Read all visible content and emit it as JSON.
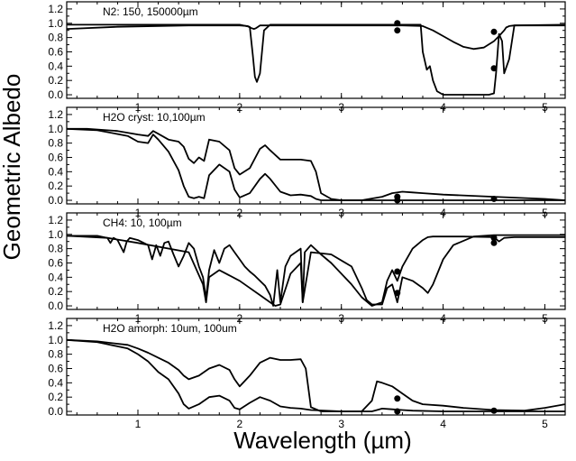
{
  "chart_data": [
    {
      "type": "line",
      "label": "N2: 150, 150000µm",
      "xlim": [
        0.3,
        5.2
      ],
      "ylim": [
        -0.05,
        1.3
      ],
      "x_ticks": [
        1,
        2,
        3,
        4,
        5
      ],
      "y_ticks": [
        0.0,
        0.2,
        0.4,
        0.6,
        0.8,
        1.0,
        1.2
      ],
      "series": [
        {
          "x": [
            0.3,
            0.8,
            1.5,
            2.0,
            2.08,
            2.1,
            2.12,
            2.14,
            2.16,
            2.18,
            2.2,
            2.3,
            2.8,
            3.3,
            3.6,
            3.8,
            3.9,
            4.0,
            4.1,
            4.2,
            4.3,
            4.4,
            4.5,
            4.55,
            4.6,
            4.62,
            4.65,
            4.7,
            5.2
          ],
          "y": [
            0.92,
            0.95,
            0.97,
            0.97,
            0.96,
            0.94,
            0.93,
            0.92,
            0.93,
            0.95,
            0.97,
            0.97,
            0.97,
            0.97,
            0.97,
            0.96,
            0.9,
            0.82,
            0.74,
            0.67,
            0.64,
            0.66,
            0.75,
            0.82,
            0.9,
            0.94,
            0.96,
            0.97,
            0.97
          ]
        },
        {
          "x": [
            0.3,
            1.5,
            2.0,
            2.1,
            2.13,
            2.15,
            2.17,
            2.2,
            2.24,
            2.3,
            3.0,
            3.78,
            3.8,
            3.84,
            3.87,
            3.9,
            3.94,
            4.0,
            4.2,
            4.45,
            4.5,
            4.52,
            4.55,
            4.58,
            4.6,
            4.65,
            4.7,
            5.2
          ],
          "y": [
            0.98,
            0.98,
            0.98,
            0.95,
            0.55,
            0.25,
            0.18,
            0.3,
            0.9,
            0.98,
            0.98,
            0.98,
            0.6,
            0.35,
            0.4,
            0.2,
            0.05,
            0.0,
            0.0,
            0.0,
            0.02,
            0.3,
            0.85,
            0.75,
            0.3,
            0.5,
            0.97,
            0.98
          ]
        }
      ],
      "markers": [
        {
          "x": 3.55,
          "y": 1.0
        },
        {
          "x": 3.55,
          "y": 0.9
        },
        {
          "x": 4.5,
          "y": 0.88
        },
        {
          "x": 4.5,
          "y": 0.37
        }
      ]
    },
    {
      "type": "line",
      "label": "H2O cryst: 10,100µm",
      "xlim": [
        0.3,
        5.2
      ],
      "ylim": [
        -0.05,
        1.3
      ],
      "x_ticks": [
        1,
        2,
        3,
        4,
        5
      ],
      "y_ticks": [
        0.0,
        0.2,
        0.4,
        0.6,
        0.8,
        1.0,
        1.2
      ],
      "series": [
        {
          "x": [
            0.3,
            0.5,
            0.8,
            1.0,
            1.1,
            1.15,
            1.2,
            1.3,
            1.4,
            1.45,
            1.5,
            1.55,
            1.6,
            1.65,
            1.7,
            1.8,
            1.9,
            1.95,
            2.0,
            2.1,
            2.2,
            2.25,
            2.3,
            2.4,
            2.5,
            2.6,
            2.7,
            2.75,
            2.8,
            2.9,
            3.0,
            3.2,
            3.4,
            3.5,
            3.6,
            3.7,
            3.8,
            4.0,
            4.5,
            5.0,
            5.2
          ],
          "y": [
            1.0,
            1.0,
            0.97,
            0.92,
            0.9,
            0.97,
            0.93,
            0.85,
            0.82,
            0.75,
            0.58,
            0.52,
            0.6,
            0.55,
            0.85,
            0.82,
            0.7,
            0.45,
            0.36,
            0.45,
            0.72,
            0.77,
            0.7,
            0.57,
            0.57,
            0.57,
            0.55,
            0.4,
            0.1,
            0.02,
            0.0,
            0.0,
            0.05,
            0.1,
            0.12,
            0.11,
            0.1,
            0.08,
            0.05,
            0.02,
            0.0
          ]
        },
        {
          "x": [
            0.3,
            0.6,
            0.9,
            1.0,
            1.1,
            1.15,
            1.2,
            1.3,
            1.4,
            1.45,
            1.5,
            1.55,
            1.6,
            1.65,
            1.7,
            1.8,
            1.9,
            1.95,
            2.0,
            2.1,
            2.2,
            2.25,
            2.3,
            2.4,
            2.5,
            2.6,
            2.7,
            2.75,
            2.8,
            3.0,
            3.5,
            4.0,
            5.2
          ],
          "y": [
            1.0,
            0.98,
            0.9,
            0.82,
            0.8,
            0.92,
            0.85,
            0.68,
            0.42,
            0.2,
            0.05,
            0.03,
            0.05,
            0.03,
            0.35,
            0.5,
            0.4,
            0.15,
            0.04,
            0.1,
            0.3,
            0.37,
            0.3,
            0.12,
            0.07,
            0.08,
            0.06,
            0.02,
            0.0,
            0.0,
            0.0,
            0.0,
            0.0
          ]
        }
      ],
      "markers": [
        {
          "x": 3.55,
          "y": 0.05
        },
        {
          "x": 3.55,
          "y": 0.0
        },
        {
          "x": 4.5,
          "y": 0.02
        }
      ]
    },
    {
      "type": "line",
      "label": "CH4: 10, 100µm",
      "xlim": [
        0.3,
        5.2
      ],
      "ylim": [
        -0.05,
        1.3
      ],
      "x_ticks": [
        1,
        2,
        3,
        4,
        5
      ],
      "y_ticks": [
        0.0,
        0.2,
        0.4,
        0.6,
        0.8,
        1.0,
        1.2
      ],
      "series": [
        {
          "x": [
            0.3,
            0.6,
            0.7,
            0.73,
            0.76,
            0.8,
            0.86,
            0.89,
            0.92,
            1.0,
            1.1,
            1.14,
            1.18,
            1.22,
            1.26,
            1.3,
            1.35,
            1.4,
            1.45,
            1.5,
            1.55,
            1.6,
            1.64,
            1.67,
            1.7,
            1.75,
            1.8,
            1.85,
            1.9,
            1.95,
            2.0,
            2.05,
            2.1,
            2.15,
            2.2,
            2.25,
            2.3,
            2.33,
            2.37,
            2.4,
            2.45,
            2.5,
            2.6,
            2.62,
            2.64,
            2.7,
            2.8,
            2.9,
            3.0,
            3.1,
            3.2,
            3.3,
            3.4,
            3.45,
            3.5,
            3.55,
            3.6,
            3.7,
            3.8,
            3.85,
            3.9,
            4.0,
            4.2,
            4.5,
            4.55,
            4.6,
            4.7,
            5.0,
            5.2
          ],
          "y": [
            0.98,
            0.98,
            0.95,
            0.88,
            0.95,
            0.92,
            0.75,
            0.9,
            0.95,
            0.92,
            0.85,
            0.65,
            0.85,
            0.7,
            0.88,
            0.9,
            0.72,
            0.55,
            0.7,
            0.88,
            0.8,
            0.55,
            0.4,
            0.1,
            0.5,
            0.78,
            0.6,
            0.8,
            0.85,
            0.75,
            0.65,
            0.55,
            0.48,
            0.42,
            0.35,
            0.28,
            0.15,
            0.0,
            0.5,
            0.05,
            0.55,
            0.7,
            0.8,
            0.05,
            0.75,
            0.85,
            0.72,
            0.6,
            0.45,
            0.3,
            0.12,
            0.0,
            0.05,
            0.35,
            0.5,
            0.35,
            0.55,
            0.8,
            0.92,
            0.96,
            0.97,
            0.97,
            0.97,
            0.96,
            0.9,
            0.95,
            0.96,
            0.96,
            0.96
          ]
        },
        {
          "x": [
            0.3,
            0.7,
            1.0,
            1.5,
            1.64,
            1.67,
            1.7,
            1.8,
            2.0,
            2.1,
            2.2,
            2.3,
            2.35,
            2.4,
            2.5,
            2.6,
            2.62,
            2.7,
            2.9,
            3.1,
            3.2,
            3.25,
            3.3,
            3.4,
            3.45,
            3.5,
            3.55,
            3.6,
            3.7,
            3.8,
            3.85,
            3.9,
            4.0,
            4.1,
            4.3,
            4.5,
            4.6,
            4.7,
            5.0,
            5.2
          ],
          "y": [
            0.98,
            0.95,
            0.88,
            0.75,
            0.3,
            0.05,
            0.4,
            0.5,
            0.35,
            0.25,
            0.15,
            0.05,
            0.0,
            0.02,
            0.45,
            0.6,
            0.05,
            0.75,
            0.72,
            0.55,
            0.25,
            0.08,
            0.02,
            0.02,
            0.25,
            0.3,
            0.05,
            0.4,
            0.35,
            0.25,
            0.18,
            0.3,
            0.65,
            0.85,
            0.97,
            0.99,
            0.99,
            0.99,
            0.99,
            0.99
          ]
        }
      ],
      "markers": [
        {
          "x": 3.55,
          "y": 0.48
        },
        {
          "x": 3.55,
          "y": 0.18
        },
        {
          "x": 4.5,
          "y": 0.95
        },
        {
          "x": 4.5,
          "y": 0.88
        }
      ]
    },
    {
      "type": "line",
      "label": "H2O amorph: 10um, 100um",
      "xlim": [
        0.3,
        5.2
      ],
      "ylim": [
        -0.05,
        1.3
      ],
      "x_ticks": [
        1,
        2,
        3,
        4,
        5
      ],
      "y_ticks": [
        0.0,
        0.2,
        0.4,
        0.6,
        0.8,
        1.0,
        1.2
      ],
      "series": [
        {
          "x": [
            0.3,
            0.6,
            0.9,
            1.0,
            1.1,
            1.2,
            1.3,
            1.4,
            1.45,
            1.5,
            1.6,
            1.7,
            1.8,
            1.9,
            1.95,
            2.0,
            2.1,
            2.2,
            2.3,
            2.4,
            2.5,
            2.6,
            2.65,
            2.7,
            2.8,
            3.0,
            3.2,
            3.3,
            3.35,
            3.4,
            3.5,
            3.6,
            3.7,
            3.8,
            4.0,
            4.2,
            4.5,
            4.8,
            5.0,
            5.2
          ],
          "y": [
            1.0,
            0.98,
            0.93,
            0.88,
            0.82,
            0.75,
            0.68,
            0.58,
            0.5,
            0.45,
            0.5,
            0.6,
            0.65,
            0.58,
            0.45,
            0.35,
            0.5,
            0.68,
            0.75,
            0.72,
            0.72,
            0.73,
            0.6,
            0.06,
            0.0,
            0.0,
            0.0,
            0.15,
            0.42,
            0.4,
            0.35,
            0.25,
            0.15,
            0.1,
            0.08,
            0.05,
            0.02,
            0.01,
            0.05,
            0.1
          ]
        },
        {
          "x": [
            0.3,
            0.6,
            0.9,
            1.0,
            1.1,
            1.2,
            1.3,
            1.4,
            1.45,
            1.5,
            1.6,
            1.7,
            1.8,
            1.9,
            1.95,
            2.0,
            2.1,
            2.2,
            2.3,
            2.4,
            2.5,
            2.6,
            2.7,
            3.0,
            3.3,
            3.35,
            3.4,
            3.5,
            3.6,
            3.7,
            4.0,
            5.2
          ],
          "y": [
            1.0,
            0.97,
            0.88,
            0.8,
            0.7,
            0.55,
            0.45,
            0.25,
            0.1,
            0.04,
            0.1,
            0.2,
            0.22,
            0.15,
            0.05,
            0.03,
            0.12,
            0.2,
            0.15,
            0.07,
            0.05,
            0.04,
            0.02,
            0.0,
            0.0,
            0.02,
            0.04,
            0.03,
            0.02,
            0.01,
            0.0,
            0.0
          ]
        }
      ],
      "markers": [
        {
          "x": 3.55,
          "y": 0.18
        },
        {
          "x": 3.55,
          "y": 0.0
        },
        {
          "x": 4.5,
          "y": 0.01
        }
      ]
    }
  ],
  "axes": {
    "xlabel": "Wavelength (µm)",
    "ylabel": "Geometric Albedo"
  },
  "colors": {
    "line": "#000000",
    "background": "#ffffff"
  }
}
